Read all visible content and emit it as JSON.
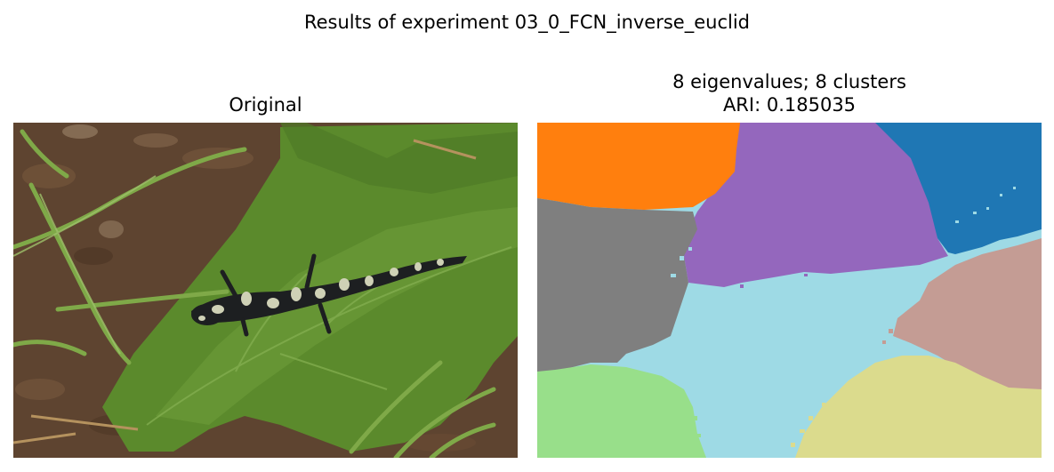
{
  "figure": {
    "suptitle": "Results of experiment 03_0_FCN_inverse_euclid"
  },
  "left_panel": {
    "title": "Original",
    "content": "photo of a spotted salamander on a green leaf over soil and grass"
  },
  "right_panel": {
    "title_line1": "8 eigenvalues; 8 clusters",
    "title_line2": "ARI: 0.185035",
    "content": "segmentation map with 8 colored clusters"
  },
  "cluster_colors": {
    "orange": "#ff7f0e",
    "purple": "#9467bd",
    "blue": "#1f77b4",
    "gray": "#7f7f7f",
    "light_blue": "#9edae5",
    "rose": "#c49c94",
    "green": "#98df8a",
    "khaki": "#dbdb8d"
  }
}
